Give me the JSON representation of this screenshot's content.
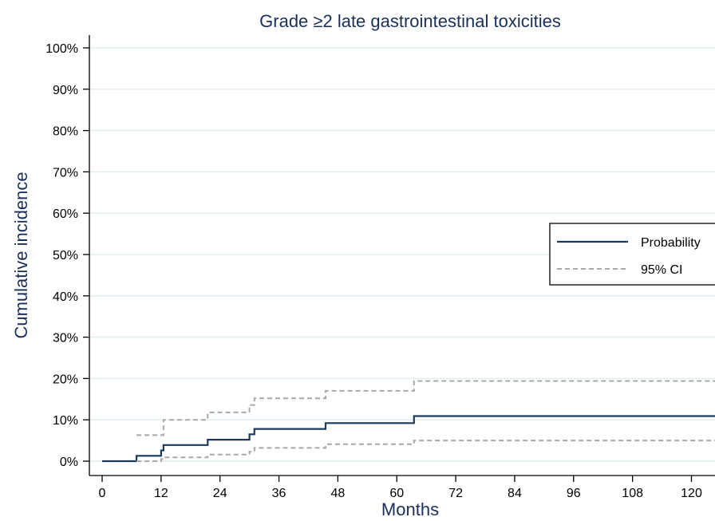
{
  "chart_data": {
    "type": "line",
    "title": "Grade ≥2 late gastrointestinal toxicities",
    "xlabel": "Months",
    "ylabel": "Cumulative incidence",
    "xlim": [
      0,
      130
    ],
    "ylim": [
      0,
      100
    ],
    "x_ticks": [
      0,
      12,
      24,
      36,
      48,
      60,
      72,
      84,
      96,
      108,
      120
    ],
    "y_ticks": [
      "0%",
      "10%",
      "20%",
      "30%",
      "40%",
      "50%",
      "60%",
      "70%",
      "80%",
      "90%",
      "100%"
    ],
    "grid": true,
    "legend_position": "right",
    "colors": {
      "probability": "#1a3a5e",
      "ci": "#a8a8a8",
      "title": "#1a2f5a",
      "grid": "#e2edf0"
    },
    "series": [
      {
        "name": "Probability",
        "style": "solid",
        "step": true,
        "points": [
          [
            0,
            0
          ],
          [
            7,
            0
          ],
          [
            7,
            1.3
          ],
          [
            12,
            1.3
          ],
          [
            12,
            2.6
          ],
          [
            12.5,
            2.6
          ],
          [
            12.5,
            3.9
          ],
          [
            21.5,
            3.9
          ],
          [
            21.5,
            5.2
          ],
          [
            30,
            5.2
          ],
          [
            30,
            6.5
          ],
          [
            31,
            6.5
          ],
          [
            31,
            7.8
          ],
          [
            45.5,
            7.8
          ],
          [
            45.5,
            9.2
          ],
          [
            63.5,
            9.2
          ],
          [
            63.5,
            10.9
          ],
          [
            130,
            10.9
          ]
        ]
      },
      {
        "name": "95% CI",
        "style": "dashed",
        "step": true,
        "points": [
          [
            7,
            6.3
          ],
          [
            12,
            6.3
          ],
          [
            12.5,
            6.3
          ],
          [
            12.5,
            10.0
          ],
          [
            21.5,
            10.0
          ],
          [
            21.5,
            11.8
          ],
          [
            30,
            11.8
          ],
          [
            30,
            13.6
          ],
          [
            31,
            13.6
          ],
          [
            31,
            15.2
          ],
          [
            45.5,
            15.2
          ],
          [
            45.5,
            17.0
          ],
          [
            63.5,
            17.0
          ],
          [
            63.5,
            19.4
          ],
          [
            130,
            19.4
          ]
        ]
      },
      {
        "name": "95% CI",
        "style": "dashed",
        "step": true,
        "points": [
          [
            7,
            0
          ],
          [
            12,
            0
          ],
          [
            12,
            0.5
          ],
          [
            12.5,
            0.5
          ],
          [
            12.5,
            0.9
          ],
          [
            21.5,
            0.9
          ],
          [
            21.5,
            1.6
          ],
          [
            30,
            1.6
          ],
          [
            30,
            2.3
          ],
          [
            31,
            2.3
          ],
          [
            31,
            3.2
          ],
          [
            45.5,
            3.2
          ],
          [
            45.5,
            4.1
          ],
          [
            63.5,
            4.1
          ],
          [
            63.5,
            5.0
          ],
          [
            130,
            5.0
          ]
        ]
      }
    ],
    "legend": [
      "Probability",
      "95% CI"
    ]
  }
}
